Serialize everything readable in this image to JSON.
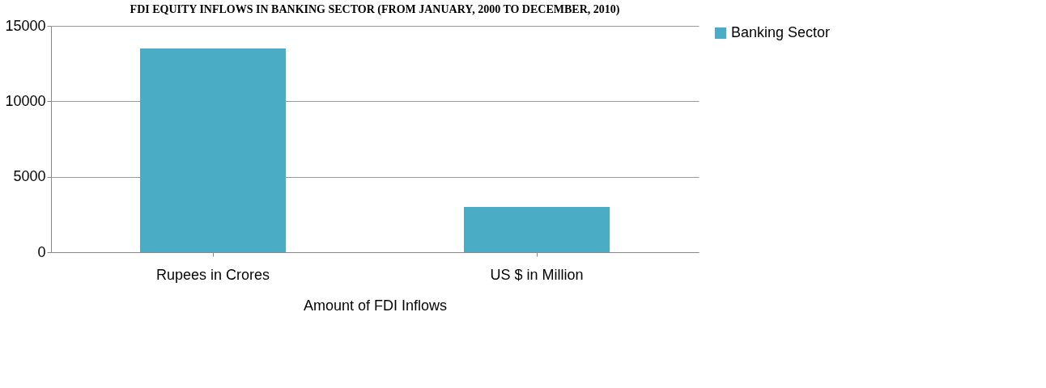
{
  "chart_data": {
    "type": "bar",
    "title": "FDI EQUITY INFLOWS IN BANKING SECTOR (FROM JANUARY, 2000 TO DECEMBER, 2010)",
    "xlabel": "Amount of FDI Inflows",
    "categories": [
      "Rupees in Crores",
      "US $ in Million"
    ],
    "series": [
      {
        "name": "Banking Sector",
        "color": "#4bacc6",
        "values": [
          13500,
          3000
        ]
      }
    ],
    "ylim": [
      0,
      15000
    ],
    "yticks": [
      0,
      5000,
      10000,
      15000
    ],
    "grid": "y",
    "legend": "right"
  }
}
